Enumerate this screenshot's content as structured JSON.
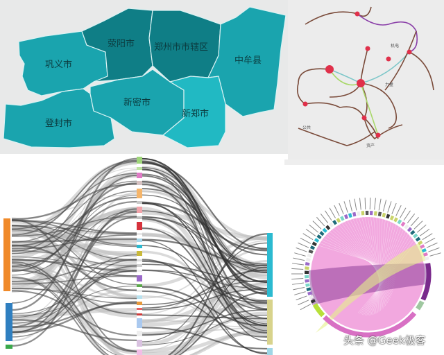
{
  "map": {
    "regions": [
      {
        "name": "巩义市",
        "shade": "mid"
      },
      {
        "name": "荥阳市",
        "shade": "dark"
      },
      {
        "name": "郑州市市辖区",
        "shade": "dark"
      },
      {
        "name": "中牟县",
        "shade": "mid"
      },
      {
        "name": "登封市",
        "shade": "mid"
      },
      {
        "name": "新密市",
        "shade": "mid"
      },
      {
        "name": "新郑市",
        "shade": "light"
      }
    ],
    "colors": {
      "dark": "#0f7e86",
      "mid": "#1aa4ae",
      "light": "#21b9c3",
      "border": "#d9f2f3",
      "background": "#e8e9e9"
    }
  },
  "network": {
    "labels": [
      "机电",
      "力量",
      "资产",
      "公共"
    ],
    "colors": {
      "node": "#e0304a",
      "brown": "#7a4b3a",
      "purple": "#8a3fa8",
      "green": "#a9d86a",
      "teal": "#7ec7c9",
      "background": "#ececec"
    }
  },
  "sankey": {
    "colors": {
      "left": [
        "#f08a2a",
        "#2f7fc0",
        "#3aa84a"
      ],
      "right": [
        "#2bbad0",
        "#d8d38c",
        "#9fd6e6"
      ],
      "link": "#666666"
    }
  },
  "chord": {
    "colors": {
      "main": "#f2a8df",
      "purple": "#7a2a8c",
      "yellow": "#e4f08a",
      "ring": "#d870c4"
    }
  },
  "watermark": "头条 @Geek极客"
}
